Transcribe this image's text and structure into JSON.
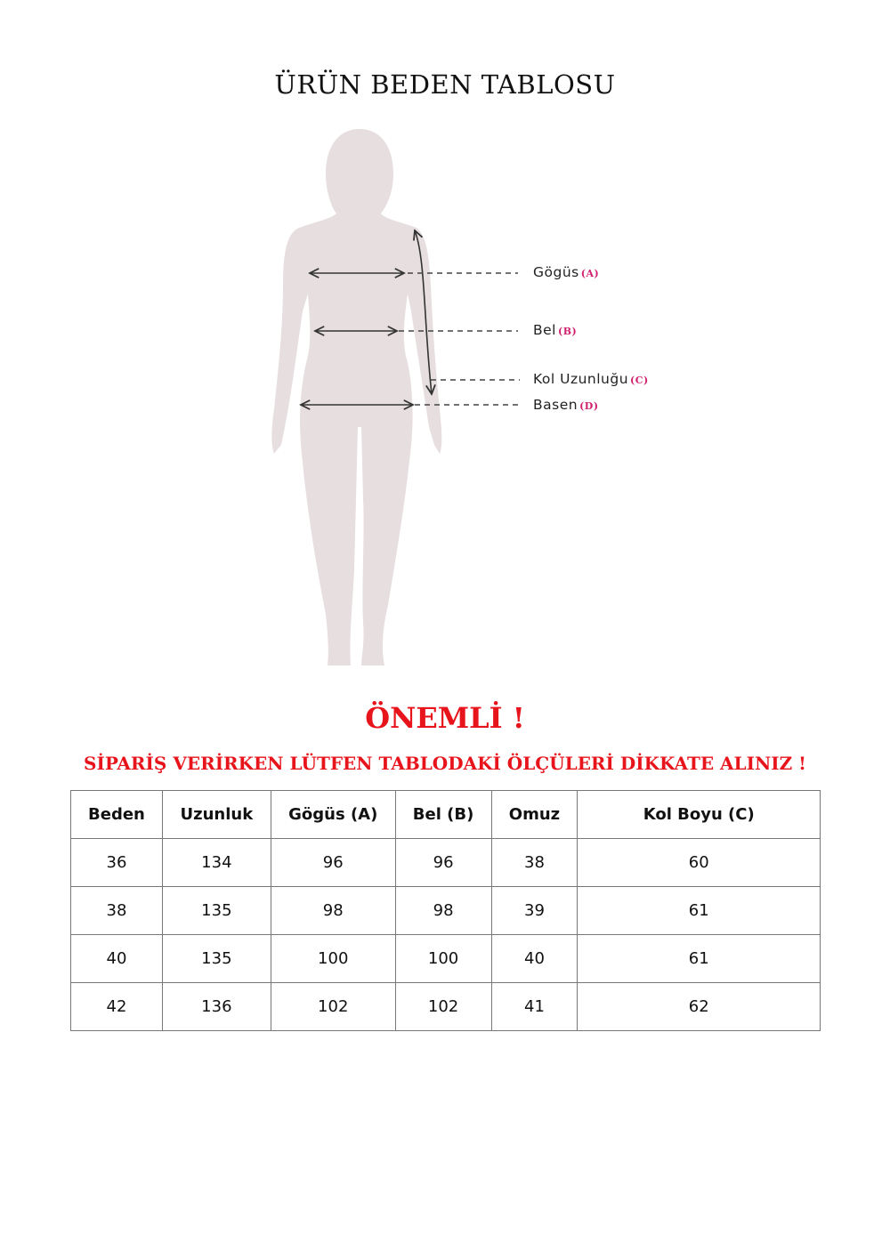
{
  "title": "ÜRÜN BEDEN TABLOSU",
  "figure": {
    "labels": [
      {
        "name": "Gögüs",
        "code": "(A)"
      },
      {
        "name": "Bel",
        "code": "(B)"
      },
      {
        "name": "Kol Uzunluğu",
        "code": "(C)"
      },
      {
        "name": "Basen",
        "code": "(D)"
      }
    ],
    "silhouette_color": "#e6dedf",
    "code_color": "#d0206e"
  },
  "notice": {
    "heading": "ÖNEMLİ !",
    "text": "SİPARİŞ VERİRKEN LÜTFEN TABLODAKİ ÖLÇÜLERİ DİKKATE ALINIZ !",
    "color": "#e8141b"
  },
  "table": {
    "headers": [
      "Beden",
      "Uzunluk",
      "Gögüs (A)",
      "Bel (B)",
      "Omuz",
      "Kol Boyu (C)"
    ],
    "rows": [
      [
        "36",
        "134",
        "96",
        "96",
        "38",
        "60"
      ],
      [
        "38",
        "135",
        "98",
        "98",
        "39",
        "61"
      ],
      [
        "40",
        "135",
        "100",
        "100",
        "40",
        "61"
      ],
      [
        "42",
        "136",
        "102",
        "102",
        "41",
        "62"
      ]
    ]
  }
}
